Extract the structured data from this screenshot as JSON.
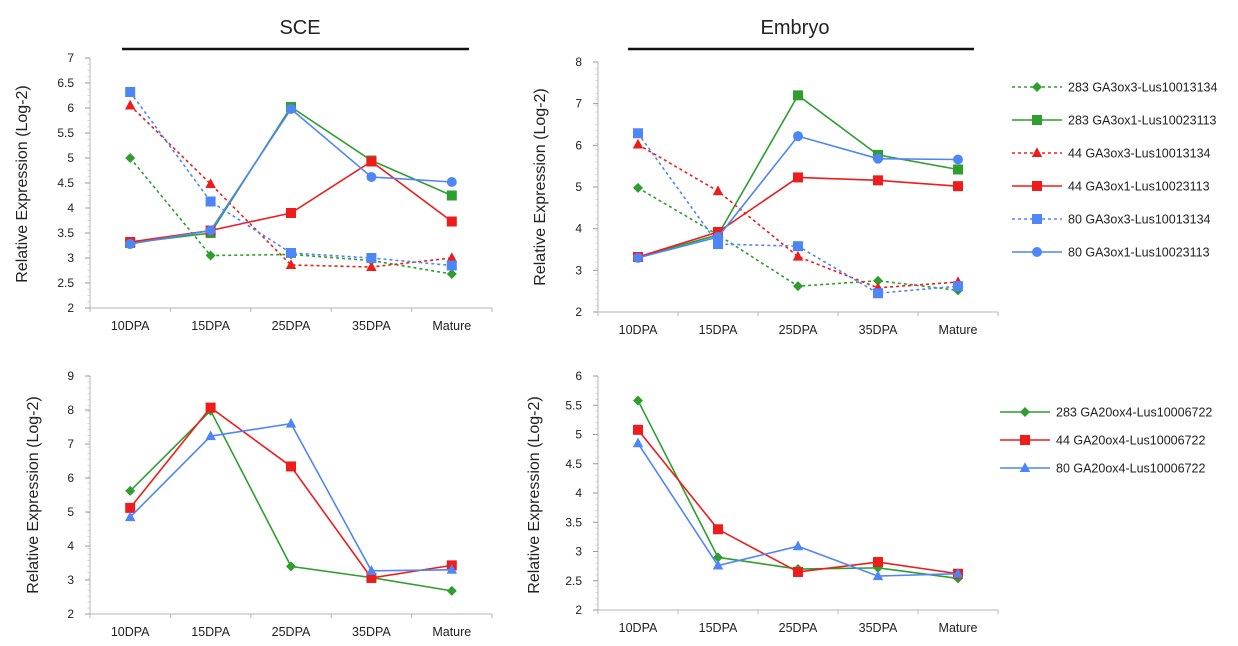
{
  "legend_top": [
    {
      "label": "283 GA3ox3-Lus10013134",
      "color": "#2e9e2e",
      "dash": true,
      "marker": "diamond"
    },
    {
      "label": "283 GA3ox1-Lus10023113",
      "color": "#2e9e2e",
      "dash": false,
      "marker": "square"
    },
    {
      "label": "44 GA3ox3-Lus10013134",
      "color": "#ef1c1c",
      "dash": true,
      "marker": "triangle"
    },
    {
      "label": "44 GA3ox1-Lus10023113",
      "color": "#ef1c1c",
      "dash": false,
      "marker": "square"
    },
    {
      "label": "80 GA3ox3-Lus10013134",
      "color": "#4f86f7",
      "dash": true,
      "marker": "square"
    },
    {
      "label": "80 GA3ox1-Lus10023113",
      "color": "#4f86f7",
      "dash": false,
      "marker": "circle"
    }
  ],
  "legend_bottom": [
    {
      "label": "283 GA20ox4-Lus10006722",
      "color": "#2e9e2e",
      "dash": false,
      "marker": "diamond"
    },
    {
      "label": "44 GA20ox4-Lus10006722",
      "color": "#ef1c1c",
      "dash": false,
      "marker": "square"
    },
    {
      "label": "80 GA20ox4-Lus10006722",
      "color": "#4f86f7",
      "dash": false,
      "marker": "triangle"
    }
  ],
  "chart_data": [
    {
      "id": "sce-top",
      "type": "line",
      "title": "SCE",
      "ylabel": "Relative Expression (Log-2)",
      "categories": [
        "10DPA",
        "15DPA",
        "25DPA",
        "35DPA",
        "Mature"
      ],
      "ylim": [
        2,
        7
      ],
      "yticks": [
        "2",
        "2.5",
        "3",
        "3.5",
        "4",
        "4.5",
        "5",
        "5.5",
        "6",
        "6.5",
        "7"
      ],
      "series": [
        {
          "name": "283 GA3ox3-Lus10013134",
          "values": [
            5.0,
            3.05,
            3.07,
            2.95,
            2.68
          ]
        },
        {
          "name": "283 GA3ox1-Lus10023113",
          "values": [
            3.3,
            3.5,
            6.02,
            4.95,
            4.25
          ]
        },
        {
          "name": "44 GA3ox3-Lus10013134",
          "values": [
            6.05,
            4.48,
            2.86,
            2.82,
            3.0
          ]
        },
        {
          "name": "44 GA3ox1-Lus10023113",
          "values": [
            3.32,
            3.55,
            3.9,
            4.93,
            3.73
          ]
        },
        {
          "name": "80 GA3ox3-Lus10013134",
          "values": [
            6.32,
            4.13,
            3.1,
            3.0,
            2.85
          ]
        },
        {
          "name": "80 GA3ox1-Lus10023113",
          "values": [
            3.28,
            3.55,
            5.98,
            4.62,
            4.52
          ]
        }
      ]
    },
    {
      "id": "embryo-top",
      "type": "line",
      "title": "Embryo",
      "ylabel": "Relative Expression (Log-2)",
      "categories": [
        "10DPA",
        "15DPA",
        "25DPA",
        "35DPA",
        "Mature"
      ],
      "ylim": [
        2,
        8
      ],
      "yticks": [
        "2",
        "3",
        "4",
        "5",
        "6",
        "7",
        "8"
      ],
      "series": [
        {
          "name": "283 GA3ox3-Lus10013134",
          "values": [
            4.98,
            3.85,
            2.62,
            2.75,
            2.52
          ]
        },
        {
          "name": "283 GA3ox1-Lus10023113",
          "values": [
            3.32,
            3.85,
            7.2,
            5.77,
            5.42
          ]
        },
        {
          "name": "44 GA3ox3-Lus10013134",
          "values": [
            6.02,
            4.9,
            3.33,
            2.58,
            2.72
          ]
        },
        {
          "name": "44 GA3ox1-Lus10023113",
          "values": [
            3.32,
            3.92,
            5.23,
            5.16,
            5.02
          ]
        },
        {
          "name": "80 GA3ox3-Lus10013134",
          "values": [
            6.29,
            3.63,
            3.58,
            2.45,
            2.62
          ]
        },
        {
          "name": "80 GA3ox1-Lus10023113",
          "values": [
            3.3,
            3.8,
            6.22,
            5.68,
            5.66
          ]
        }
      ]
    },
    {
      "id": "sce-bottom",
      "type": "line",
      "ylabel": "Relative Expression (Log-2)",
      "categories": [
        "10DPA",
        "15DPA",
        "25DPA",
        "35DPA",
        "Mature"
      ],
      "ylim": [
        2,
        9
      ],
      "yticks": [
        "2",
        "3",
        "4",
        "5",
        "6",
        "7",
        "8",
        "9"
      ],
      "series": [
        {
          "name": "283 GA20ox4-Lus10006722",
          "values": [
            5.62,
            7.98,
            3.4,
            3.07,
            2.68
          ]
        },
        {
          "name": "44 GA20ox4-Lus10006722",
          "values": [
            5.12,
            8.07,
            6.34,
            3.06,
            3.43
          ]
        },
        {
          "name": "80 GA20ox4-Lus10006722",
          "values": [
            4.85,
            7.23,
            7.6,
            3.27,
            3.3
          ]
        }
      ]
    },
    {
      "id": "embryo-bottom",
      "type": "line",
      "ylabel": "Relative Expression (Log-2)",
      "categories": [
        "10DPA",
        "15DPA",
        "25DPA",
        "35DPA",
        "Mature"
      ],
      "ylim": [
        2,
        6
      ],
      "yticks": [
        "2",
        "2.5",
        "3",
        "3.5",
        "4",
        "4.5",
        "5",
        "5.5",
        "6"
      ],
      "series": [
        {
          "name": "283 GA20ox4-Lus10006722",
          "values": [
            5.58,
            2.9,
            2.7,
            2.72,
            2.54
          ]
        },
        {
          "name": "44 GA20ox4-Lus10006722",
          "values": [
            5.08,
            3.38,
            2.65,
            2.82,
            2.62
          ]
        },
        {
          "name": "80 GA20ox4-Lus10006722",
          "values": [
            4.85,
            2.76,
            3.09,
            2.58,
            2.62
          ]
        }
      ]
    }
  ]
}
